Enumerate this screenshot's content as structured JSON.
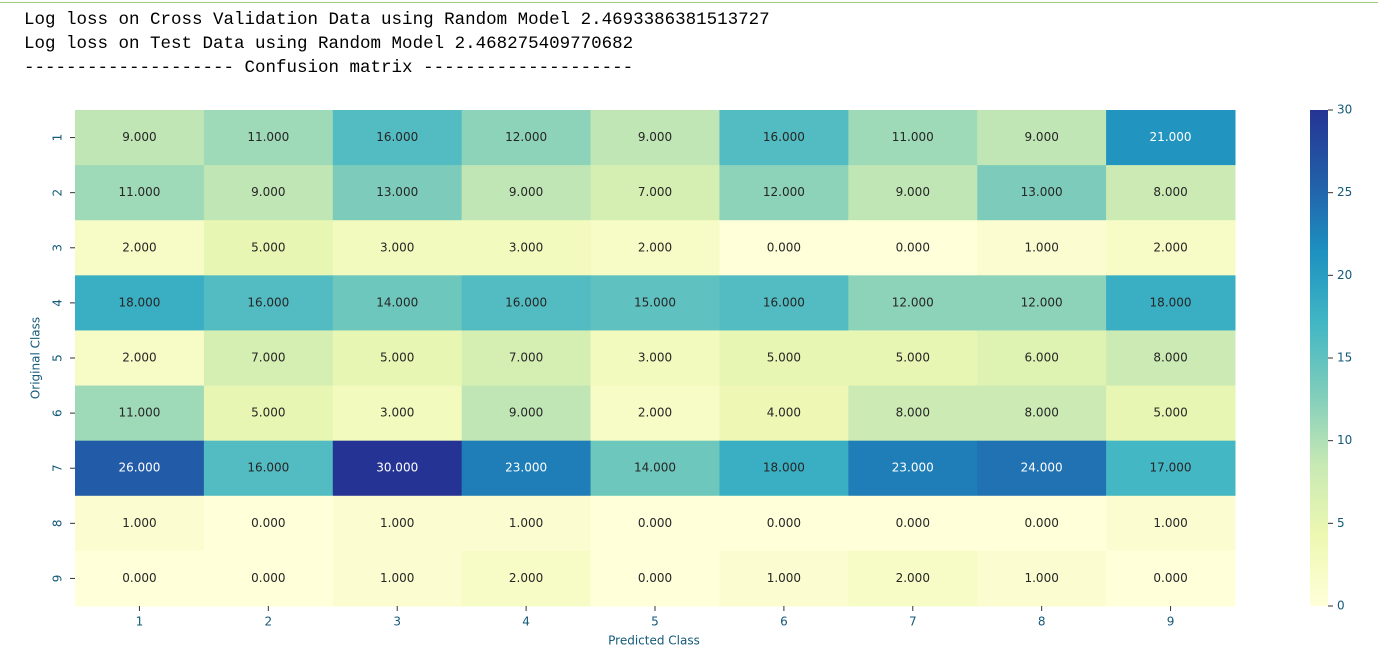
{
  "output": [
    "Log loss on Cross Validation Data using Random Model 2.4693386381513727",
    "Log loss on Test Data using Random Model 2.468275409770682",
    "-------------------- Confusion matrix --------------------"
  ],
  "chart_data": {
    "type": "heatmap",
    "x_label": "Predicted Class",
    "y_label": "Original Class",
    "x_categories": [
      "1",
      "2",
      "3",
      "4",
      "5",
      "6",
      "7",
      "8",
      "9"
    ],
    "y_categories": [
      "1",
      "2",
      "3",
      "4",
      "5",
      "6",
      "7",
      "8",
      "9"
    ],
    "values": [
      [
        9,
        11,
        16,
        12,
        9,
        16,
        11,
        9,
        21
      ],
      [
        11,
        9,
        13,
        9,
        7,
        12,
        9,
        13,
        8
      ],
      [
        2,
        5,
        3,
        3,
        2,
        0,
        0,
        1,
        2
      ],
      [
        18,
        16,
        14,
        16,
        15,
        16,
        12,
        12,
        18
      ],
      [
        2,
        7,
        5,
        7,
        3,
        5,
        5,
        6,
        8
      ],
      [
        11,
        5,
        3,
        9,
        2,
        4,
        8,
        8,
        5
      ],
      [
        26,
        16,
        30,
        23,
        14,
        18,
        23,
        24,
        17
      ],
      [
        1,
        0,
        1,
        1,
        0,
        0,
        0,
        0,
        1
      ],
      [
        0,
        0,
        1,
        2,
        0,
        1,
        2,
        1,
        0
      ]
    ],
    "value_labels": [
      [
        "9.000",
        "11.000",
        "16.000",
        "12.000",
        "9.000",
        "16.000",
        "11.000",
        "9.000",
        "21.000"
      ],
      [
        "11.000",
        "9.000",
        "13.000",
        "9.000",
        "7.000",
        "12.000",
        "9.000",
        "13.000",
        "8.000"
      ],
      [
        "2.000",
        "5.000",
        "3.000",
        "3.000",
        "2.000",
        "0.000",
        "0.000",
        "1.000",
        "2.000"
      ],
      [
        "18.000",
        "16.000",
        "14.000",
        "16.000",
        "15.000",
        "16.000",
        "12.000",
        "12.000",
        "18.000"
      ],
      [
        "2.000",
        "7.000",
        "5.000",
        "7.000",
        "3.000",
        "5.000",
        "5.000",
        "6.000",
        "8.000"
      ],
      [
        "11.000",
        "5.000",
        "3.000",
        "9.000",
        "2.000",
        "4.000",
        "8.000",
        "8.000",
        "5.000"
      ],
      [
        "26.000",
        "16.000",
        "30.000",
        "23.000",
        "14.000",
        "18.000",
        "23.000",
        "24.000",
        "17.000"
      ],
      [
        "1.000",
        "0.000",
        "1.000",
        "1.000",
        "0.000",
        "0.000",
        "0.000",
        "0.000",
        "1.000"
      ],
      [
        "0.000",
        "0.000",
        "1.000",
        "2.000",
        "0.000",
        "1.000",
        "2.000",
        "1.000",
        "0.000"
      ]
    ],
    "colormap": [
      "#ffffd9",
      "#edf8b1",
      "#c7e9b4",
      "#7fcdbb",
      "#41b6c4",
      "#1d91c0",
      "#225ea8",
      "#253494"
    ],
    "clim": [
      0,
      30
    ],
    "cticks": [
      0,
      5,
      10,
      15,
      20,
      25,
      30
    ]
  }
}
